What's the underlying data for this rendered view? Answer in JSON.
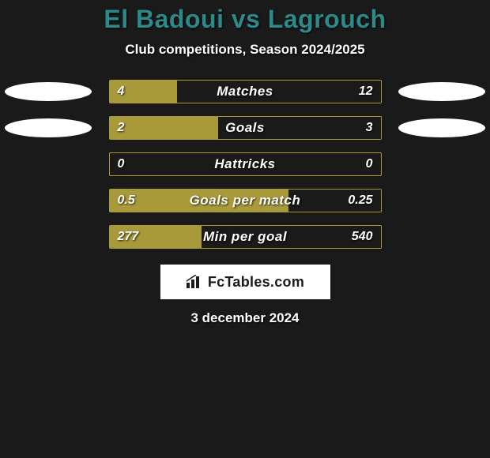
{
  "title": "El Badoui vs Lagrouch",
  "subtitle": "Club competitions, Season 2024/2025",
  "chart": {
    "type": "comparison-bars",
    "bar_color": "#a89a3a",
    "border_color": "#a89a3a",
    "track_bg": "#1a1a1a",
    "text_color": "#ffffff",
    "marker_color": "#ffffff",
    "title_color": "#2c8a8a",
    "page_bg": "#1a1a1a",
    "label_fontsize": 17,
    "value_fontsize": 16,
    "rows": [
      {
        "label": "Matches",
        "left_value": "4",
        "right_value": "12",
        "fill_pct": 25,
        "show_markers": true
      },
      {
        "label": "Goals",
        "left_value": "2",
        "right_value": "3",
        "fill_pct": 40,
        "show_markers": true
      },
      {
        "label": "Hattricks",
        "left_value": "0",
        "right_value": "0",
        "fill_pct": 0,
        "show_markers": false
      },
      {
        "label": "Goals per match",
        "left_value": "0.5",
        "right_value": "0.25",
        "fill_pct": 66,
        "show_markers": false
      },
      {
        "label": "Min per goal",
        "left_value": "277",
        "right_value": "540",
        "fill_pct": 34,
        "show_markers": false
      }
    ]
  },
  "footer": {
    "brand": "FcTables.com",
    "date": "3 december 2024"
  }
}
